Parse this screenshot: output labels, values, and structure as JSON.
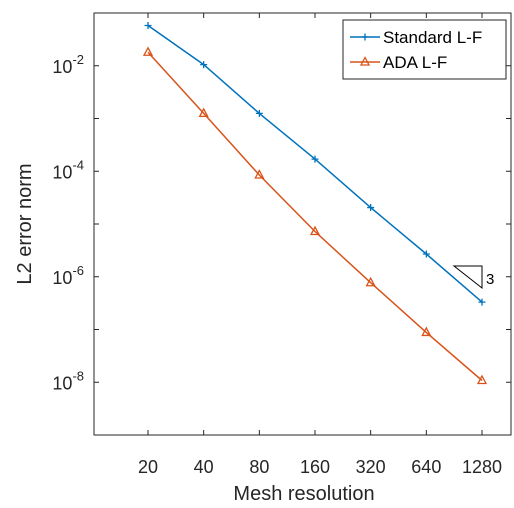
{
  "chart_data": {
    "type": "line",
    "title": "",
    "xlabel": "Mesh resolution",
    "ylabel": "L2 error norm",
    "x_scale": "log2",
    "y_scale": "log10",
    "categories": [
      "20",
      "40",
      "80",
      "160",
      "320",
      "640",
      "1280"
    ],
    "x": [
      20,
      40,
      80,
      160,
      320,
      640,
      1280
    ],
    "ylim": [
      1e-09,
      0.1
    ],
    "y_ticks": [
      {
        "value": 0.01,
        "base": "10",
        "exp": "-2"
      },
      {
        "value": 0.0001,
        "base": "10",
        "exp": "-4"
      },
      {
        "value": 1e-06,
        "base": "10",
        "exp": "-6"
      },
      {
        "value": 1e-08,
        "base": "10",
        "exp": "-8"
      }
    ],
    "series": [
      {
        "name": "Standard L-F",
        "color": "#0072BD",
        "marker": "plus",
        "values": [
          0.058,
          0.0105,
          0.00125,
          0.00017,
          2.05e-05,
          2.7e-06,
          3.3e-07
        ]
      },
      {
        "name": "ADA L-F",
        "color": "#D95319",
        "marker": "triangle",
        "values": [
          0.018,
          0.00125,
          8.5e-05,
          7.2e-06,
          7.7e-07,
          8.8e-08,
          1.08e-08
        ]
      }
    ],
    "legend": {
      "position": "top-right"
    },
    "annotation": {
      "type": "slope-triangle",
      "label": "3"
    },
    "grid": false
  }
}
